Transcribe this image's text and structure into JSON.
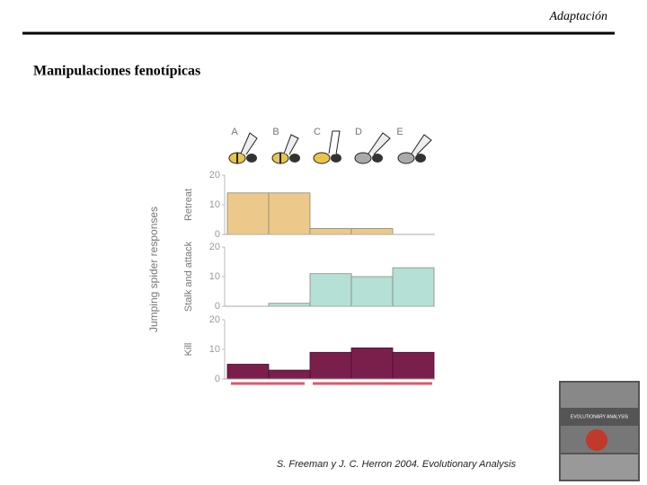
{
  "header": {
    "section": "Adaptación"
  },
  "title": "Manipulaciones fenotípicas",
  "caption": "S. Freeman y J. C. Herron 2004. Evolutionary Analysis",
  "cover": {
    "title": "EVOLUTIONARY ANALYSIS"
  },
  "chart_data": {
    "type": "bar",
    "y_label": "Jumping spider responses",
    "categories": [
      "A",
      "B",
      "C",
      "D",
      "E"
    ],
    "ylim": [
      0,
      20
    ],
    "yticks": [
      0,
      10,
      20
    ],
    "series": [
      {
        "name": "Retreat",
        "color": "#ecc98a",
        "values": [
          14,
          14,
          2,
          2,
          0
        ]
      },
      {
        "name": "Stalk and attack",
        "color": "#b4e0d6",
        "values": [
          0,
          1,
          11,
          10,
          13
        ]
      },
      {
        "name": "Kill",
        "color": "#7a1f4b",
        "values": [
          5,
          3,
          9,
          10.5,
          9
        ]
      }
    ]
  }
}
